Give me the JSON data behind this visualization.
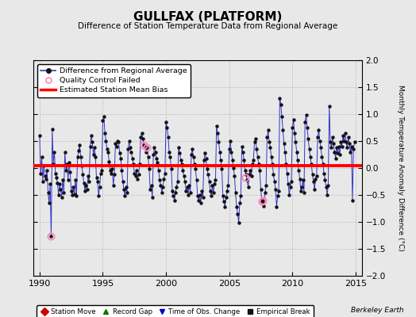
{
  "title": "GULLFAX (PLATFORM)",
  "subtitle": "Difference of Station Temperature Data from Regional Average",
  "ylabel": "Monthly Temperature Anomaly Difference (°C)",
  "xlim": [
    1989.5,
    2015.5
  ],
  "ylim": [
    -2,
    2
  ],
  "yticks": [
    -2,
    -1.5,
    -1,
    -0.5,
    0,
    0.5,
    1,
    1.5,
    2
  ],
  "xticks": [
    1990,
    1995,
    2000,
    2005,
    2010,
    2015
  ],
  "mean_bias": 0.05,
  "bias_color": "#ff0000",
  "line_color": "#3333cc",
  "dot_color": "#111111",
  "qc_color": "#ff88bb",
  "background_color": "#e8e8e8",
  "plot_bg_color": "#e8e8e8",
  "berkeley_earth_text": "Berkeley Earth",
  "legend1_items": [
    "Difference from Regional Average",
    "Quality Control Failed",
    "Estimated Station Mean Bias"
  ],
  "legend2_items": [
    "Station Move",
    "Record Gap",
    "Time of Obs. Change",
    "Empirical Break"
  ],
  "qc_failed_points": [
    [
      1990.917,
      -1.27
    ],
    [
      1998.25,
      0.42
    ],
    [
      1998.5,
      0.38
    ],
    [
      2006.25,
      -0.18
    ],
    [
      2007.583,
      -0.62
    ],
    [
      2007.667,
      -0.6
    ]
  ],
  "time_series": [
    [
      1990.0,
      0.6
    ],
    [
      1990.083,
      -0.1
    ],
    [
      1990.167,
      0.2
    ],
    [
      1990.25,
      -0.25
    ],
    [
      1990.333,
      0.05
    ],
    [
      1990.417,
      -0.15
    ],
    [
      1990.5,
      -0.2
    ],
    [
      1990.583,
      -0.05
    ],
    [
      1990.667,
      -0.45
    ],
    [
      1990.75,
      -0.65
    ],
    [
      1990.833,
      -0.3
    ],
    [
      1990.917,
      -1.27
    ],
    [
      1991.0,
      0.72
    ],
    [
      1991.083,
      0.08
    ],
    [
      1991.167,
      0.3
    ],
    [
      1991.25,
      -0.1
    ],
    [
      1991.333,
      -0.18
    ],
    [
      1991.417,
      -0.28
    ],
    [
      1991.5,
      -0.5
    ],
    [
      1991.583,
      -0.3
    ],
    [
      1991.667,
      -0.4
    ],
    [
      1991.75,
      -0.55
    ],
    [
      1991.833,
      -0.22
    ],
    [
      1991.917,
      -0.45
    ],
    [
      1992.0,
      0.3
    ],
    [
      1992.083,
      -0.05
    ],
    [
      1992.167,
      0.08
    ],
    [
      1992.25,
      -0.22
    ],
    [
      1992.333,
      0.1
    ],
    [
      1992.417,
      -0.08
    ],
    [
      1992.5,
      -0.42
    ],
    [
      1992.583,
      -0.5
    ],
    [
      1992.667,
      -0.35
    ],
    [
      1992.75,
      -0.48
    ],
    [
      1992.833,
      -0.22
    ],
    [
      1992.917,
      -0.52
    ],
    [
      1993.0,
      0.2
    ],
    [
      1993.083,
      0.32
    ],
    [
      1993.167,
      0.42
    ],
    [
      1993.25,
      0.2
    ],
    [
      1993.333,
      0.05
    ],
    [
      1993.417,
      -0.12
    ],
    [
      1993.5,
      -0.28
    ],
    [
      1993.583,
      -0.42
    ],
    [
      1993.667,
      -0.32
    ],
    [
      1993.75,
      -0.4
    ],
    [
      1993.833,
      -0.15
    ],
    [
      1993.917,
      -0.25
    ],
    [
      1994.0,
      0.4
    ],
    [
      1994.083,
      0.6
    ],
    [
      1994.167,
      0.48
    ],
    [
      1994.25,
      0.25
    ],
    [
      1994.333,
      0.38
    ],
    [
      1994.417,
      0.2
    ],
    [
      1994.5,
      -0.18
    ],
    [
      1994.583,
      -0.25
    ],
    [
      1994.667,
      -0.52
    ],
    [
      1994.75,
      -0.35
    ],
    [
      1994.833,
      -0.1
    ],
    [
      1994.917,
      -0.05
    ],
    [
      1995.0,
      0.88
    ],
    [
      1995.083,
      0.95
    ],
    [
      1995.167,
      0.65
    ],
    [
      1995.25,
      0.5
    ],
    [
      1995.333,
      0.35
    ],
    [
      1995.417,
      0.3
    ],
    [
      1995.5,
      0.12
    ],
    [
      1995.583,
      -0.05
    ],
    [
      1995.667,
      -0.1
    ],
    [
      1995.75,
      -0.02
    ],
    [
      1995.833,
      -0.32
    ],
    [
      1995.917,
      -0.12
    ],
    [
      1996.0,
      0.45
    ],
    [
      1996.083,
      0.4
    ],
    [
      1996.167,
      0.5
    ],
    [
      1996.25,
      0.48
    ],
    [
      1996.333,
      0.28
    ],
    [
      1996.417,
      0.18
    ],
    [
      1996.5,
      -0.05
    ],
    [
      1996.583,
      -0.25
    ],
    [
      1996.667,
      -0.4
    ],
    [
      1996.75,
      -0.52
    ],
    [
      1996.833,
      -0.35
    ],
    [
      1996.917,
      -0.45
    ],
    [
      1997.0,
      0.35
    ],
    [
      1997.083,
      0.5
    ],
    [
      1997.167,
      0.38
    ],
    [
      1997.25,
      0.3
    ],
    [
      1997.333,
      0.18
    ],
    [
      1997.417,
      0.08
    ],
    [
      1997.5,
      -0.1
    ],
    [
      1997.583,
      -0.15
    ],
    [
      1997.667,
      -0.05
    ],
    [
      1997.75,
      -0.2
    ],
    [
      1997.833,
      -0.12
    ],
    [
      1997.917,
      0.08
    ],
    [
      1998.0,
      0.58
    ],
    [
      1998.083,
      0.65
    ],
    [
      1998.167,
      0.55
    ],
    [
      1998.25,
      0.42
    ],
    [
      1998.333,
      0.4
    ],
    [
      1998.417,
      0.3
    ],
    [
      1998.5,
      0.38
    ],
    [
      1998.583,
      0.2
    ],
    [
      1998.667,
      -0.02
    ],
    [
      1998.75,
      -0.4
    ],
    [
      1998.833,
      -0.32
    ],
    [
      1998.917,
      -0.55
    ],
    [
      1999.0,
      0.25
    ],
    [
      1999.083,
      0.38
    ],
    [
      1999.167,
      0.3
    ],
    [
      1999.25,
      0.18
    ],
    [
      1999.333,
      0.1
    ],
    [
      1999.417,
      -0.05
    ],
    [
      1999.5,
      -0.22
    ],
    [
      1999.583,
      -0.32
    ],
    [
      1999.667,
      -0.45
    ],
    [
      1999.75,
      -0.35
    ],
    [
      1999.833,
      -0.2
    ],
    [
      1999.917,
      -0.1
    ],
    [
      2000.0,
      0.85
    ],
    [
      2000.083,
      0.75
    ],
    [
      2000.167,
      0.58
    ],
    [
      2000.25,
      0.3
    ],
    [
      2000.333,
      0.2
    ],
    [
      2000.417,
      -0.02
    ],
    [
      2000.5,
      -0.42
    ],
    [
      2000.583,
      -0.52
    ],
    [
      2000.667,
      -0.6
    ],
    [
      2000.75,
      -0.45
    ],
    [
      2000.833,
      -0.35
    ],
    [
      2000.917,
      -0.25
    ],
    [
      2001.0,
      0.38
    ],
    [
      2001.083,
      0.28
    ],
    [
      2001.167,
      0.15
    ],
    [
      2001.25,
      0.08
    ],
    [
      2001.333,
      -0.05
    ],
    [
      2001.417,
      -0.15
    ],
    [
      2001.5,
      -0.25
    ],
    [
      2001.583,
      -0.42
    ],
    [
      2001.667,
      -0.35
    ],
    [
      2001.75,
      -0.5
    ],
    [
      2001.833,
      -0.32
    ],
    [
      2001.917,
      -0.45
    ],
    [
      2002.0,
      0.25
    ],
    [
      2002.083,
      0.35
    ],
    [
      2002.167,
      0.2
    ],
    [
      2002.25,
      0.08
    ],
    [
      2002.333,
      -0.02
    ],
    [
      2002.417,
      -0.22
    ],
    [
      2002.5,
      -0.52
    ],
    [
      2002.583,
      -0.6
    ],
    [
      2002.667,
      -0.5
    ],
    [
      2002.75,
      -0.65
    ],
    [
      2002.833,
      -0.42
    ],
    [
      2002.917,
      -0.55
    ],
    [
      2003.0,
      0.15
    ],
    [
      2003.083,
      0.28
    ],
    [
      2003.167,
      0.18
    ],
    [
      2003.25,
      -0.02
    ],
    [
      2003.333,
      -0.12
    ],
    [
      2003.417,
      -0.25
    ],
    [
      2003.5,
      -0.42
    ],
    [
      2003.583,
      -0.52
    ],
    [
      2003.667,
      -0.32
    ],
    [
      2003.75,
      -0.45
    ],
    [
      2003.833,
      -0.3
    ],
    [
      2003.917,
      -0.22
    ],
    [
      2004.0,
      0.78
    ],
    [
      2004.083,
      0.65
    ],
    [
      2004.167,
      0.48
    ],
    [
      2004.25,
      0.3
    ],
    [
      2004.333,
      0.15
    ],
    [
      2004.417,
      -0.02
    ],
    [
      2004.5,
      -0.52
    ],
    [
      2004.583,
      -0.62
    ],
    [
      2004.667,
      -0.72
    ],
    [
      2004.75,
      -0.55
    ],
    [
      2004.833,
      -0.42
    ],
    [
      2004.917,
      -0.32
    ],
    [
      2005.0,
      0.35
    ],
    [
      2005.083,
      0.5
    ],
    [
      2005.167,
      0.3
    ],
    [
      2005.25,
      0.15
    ],
    [
      2005.333,
      0.0
    ],
    [
      2005.417,
      -0.15
    ],
    [
      2005.5,
      -0.45
    ],
    [
      2005.583,
      -0.72
    ],
    [
      2005.667,
      -0.85
    ],
    [
      2005.75,
      -1.02
    ],
    [
      2005.833,
      -0.65
    ],
    [
      2005.917,
      -0.52
    ],
    [
      2006.0,
      0.4
    ],
    [
      2006.083,
      0.3
    ],
    [
      2006.167,
      0.15
    ],
    [
      2006.25,
      -0.05
    ],
    [
      2006.333,
      -0.12
    ],
    [
      2006.417,
      -0.22
    ],
    [
      2006.5,
      -0.35
    ],
    [
      2006.583,
      -0.12
    ],
    [
      2006.667,
      -0.05
    ],
    [
      2006.75,
      -0.15
    ],
    [
      2006.833,
      0.08
    ],
    [
      2006.917,
      0.15
    ],
    [
      2007.0,
      0.48
    ],
    [
      2007.083,
      0.55
    ],
    [
      2007.167,
      0.35
    ],
    [
      2007.25,
      0.2
    ],
    [
      2007.333,
      0.08
    ],
    [
      2007.417,
      -0.05
    ],
    [
      2007.5,
      -0.4
    ],
    [
      2007.583,
      -0.62
    ],
    [
      2007.667,
      -0.6
    ],
    [
      2007.75,
      -0.7
    ],
    [
      2007.833,
      -0.45
    ],
    [
      2007.917,
      -0.32
    ],
    [
      2008.0,
      0.58
    ],
    [
      2008.083,
      0.7
    ],
    [
      2008.167,
      0.48
    ],
    [
      2008.25,
      0.38
    ],
    [
      2008.333,
      0.2
    ],
    [
      2008.417,
      0.08
    ],
    [
      2008.5,
      -0.12
    ],
    [
      2008.583,
      -0.25
    ],
    [
      2008.667,
      -0.4
    ],
    [
      2008.75,
      -0.72
    ],
    [
      2008.833,
      -0.52
    ],
    [
      2008.917,
      -0.42
    ],
    [
      2009.0,
      1.3
    ],
    [
      2009.083,
      1.18
    ],
    [
      2009.167,
      0.95
    ],
    [
      2009.25,
      0.7
    ],
    [
      2009.333,
      0.45
    ],
    [
      2009.417,
      0.3
    ],
    [
      2009.5,
      0.08
    ],
    [
      2009.583,
      -0.1
    ],
    [
      2009.667,
      -0.3
    ],
    [
      2009.75,
      -0.5
    ],
    [
      2009.833,
      -0.35
    ],
    [
      2009.917,
      -0.25
    ],
    [
      2010.0,
      0.75
    ],
    [
      2010.083,
      0.9
    ],
    [
      2010.167,
      0.65
    ],
    [
      2010.25,
      0.48
    ],
    [
      2010.333,
      0.3
    ],
    [
      2010.417,
      0.15
    ],
    [
      2010.5,
      -0.05
    ],
    [
      2010.583,
      -0.2
    ],
    [
      2010.667,
      -0.42
    ],
    [
      2010.75,
      -0.35
    ],
    [
      2010.833,
      -0.22
    ],
    [
      2010.917,
      -0.45
    ],
    [
      2011.0,
      0.85
    ],
    [
      2011.083,
      0.98
    ],
    [
      2011.167,
      0.75
    ],
    [
      2011.25,
      0.55
    ],
    [
      2011.333,
      0.35
    ],
    [
      2011.417,
      0.2
    ],
    [
      2011.5,
      0.08
    ],
    [
      2011.583,
      -0.12
    ],
    [
      2011.667,
      -0.25
    ],
    [
      2011.75,
      -0.4
    ],
    [
      2011.833,
      -0.2
    ],
    [
      2011.917,
      -0.15
    ],
    [
      2012.0,
      0.58
    ],
    [
      2012.083,
      0.7
    ],
    [
      2012.167,
      0.5
    ],
    [
      2012.25,
      0.38
    ],
    [
      2012.333,
      0.2
    ],
    [
      2012.417,
      0.08
    ],
    [
      2012.5,
      -0.1
    ],
    [
      2012.583,
      -0.22
    ],
    [
      2012.667,
      -0.35
    ],
    [
      2012.75,
      -0.5
    ],
    [
      2012.833,
      -0.32
    ],
    [
      2012.917,
      1.15
    ],
    [
      2013.0,
      0.48
    ],
    [
      2013.083,
      0.38
    ],
    [
      2013.167,
      0.58
    ],
    [
      2013.25,
      0.45
    ],
    [
      2013.333,
      0.3
    ],
    [
      2013.417,
      0.18
    ],
    [
      2013.5,
      0.38
    ],
    [
      2013.583,
      0.28
    ],
    [
      2013.667,
      0.4
    ],
    [
      2013.75,
      0.25
    ],
    [
      2013.833,
      0.48
    ],
    [
      2013.917,
      0.4
    ],
    [
      2014.0,
      0.6
    ],
    [
      2014.083,
      0.5
    ],
    [
      2014.167,
      0.65
    ],
    [
      2014.25,
      0.48
    ],
    [
      2014.333,
      0.38
    ],
    [
      2014.417,
      0.58
    ],
    [
      2014.5,
      0.45
    ],
    [
      2014.583,
      0.3
    ],
    [
      2014.667,
      0.4
    ],
    [
      2014.75,
      -0.6
    ],
    [
      2014.833,
      0.35
    ],
    [
      2014.917,
      0.48
    ]
  ]
}
